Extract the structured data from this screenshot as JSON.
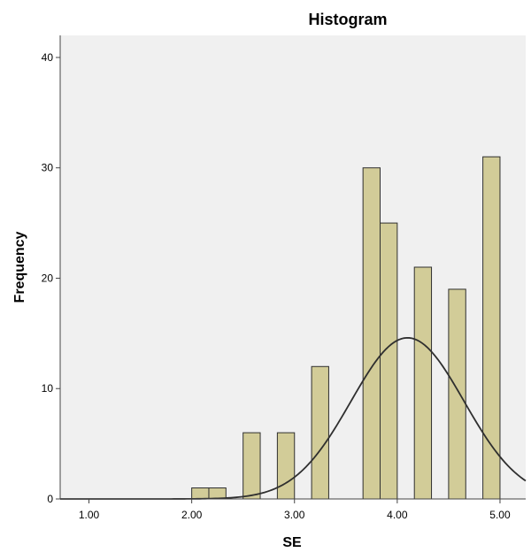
{
  "chart_data": {
    "type": "bar",
    "title": "Histogram",
    "xlabel": "SE",
    "ylabel": "Frequency",
    "xlim": [
      0.72,
      5.25
    ],
    "ylim": [
      0,
      42
    ],
    "x_ticks": [
      "1.00",
      "2.00",
      "3.00",
      "4.00",
      "5.00"
    ],
    "y_ticks": [
      "0",
      "10",
      "20",
      "30",
      "40"
    ],
    "bin_width": 0.1667,
    "bins": [
      {
        "start": 2.0,
        "end": 2.1667,
        "count": 1
      },
      {
        "start": 2.1667,
        "end": 2.3333,
        "count": 1
      },
      {
        "start": 2.5,
        "end": 2.6667,
        "count": 6
      },
      {
        "start": 2.8333,
        "end": 3.0,
        "count": 6
      },
      {
        "start": 3.1667,
        "end": 3.3333,
        "count": 12
      },
      {
        "start": 3.6667,
        "end": 3.8333,
        "count": 30
      },
      {
        "start": 3.8333,
        "end": 4.0,
        "count": 25
      },
      {
        "start": 4.1667,
        "end": 4.3333,
        "count": 21
      },
      {
        "start": 4.5,
        "end": 4.6667,
        "count": 19
      },
      {
        "start": 4.8333,
        "end": 5.0,
        "count": 31
      }
    ],
    "normal_curve": {
      "mean": 4.1,
      "sd": 0.55,
      "peak": 14.6
    },
    "grid": false,
    "colors": {
      "plot_background": "#f0f0f0",
      "bar_fill": "#d2cc98",
      "bar_stroke": "#2f2f2f",
      "curve": "#2f2f2f"
    }
  }
}
